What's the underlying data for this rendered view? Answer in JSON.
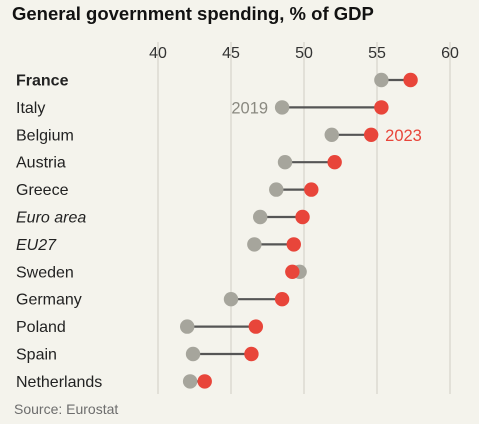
{
  "header": {
    "title": "General government spending, % of GDP"
  },
  "footer": {
    "source": "Source: Eurostat"
  },
  "colors": {
    "year_2019": "#a6a59c",
    "year_2023": "#e8453a",
    "connector": "#555555",
    "grid": "#cfcdc4",
    "background": "#f4f3ec"
  },
  "chart_data": {
    "type": "dot-plot",
    "title": "General government spending, % of GDP",
    "xlim": [
      40,
      60
    ],
    "x_ticks": [
      40,
      45,
      50,
      55,
      60
    ],
    "grid": true,
    "categories": [
      "France",
      "Italy",
      "Belgium",
      "Austria",
      "Greece",
      "Euro area",
      "EU27",
      "Sweden",
      "Germany",
      "Poland",
      "Spain",
      "Netherlands"
    ],
    "category_styles": [
      "bold",
      "normal",
      "normal",
      "normal",
      "normal",
      "italic",
      "italic",
      "normal",
      "normal",
      "normal",
      "normal",
      "normal"
    ],
    "series": [
      {
        "name": "2019",
        "values": [
          55.3,
          48.5,
          51.9,
          48.7,
          48.1,
          47.0,
          46.6,
          49.7,
          45.0,
          42.0,
          42.4,
          42.2
        ]
      },
      {
        "name": "2023",
        "values": [
          57.3,
          55.3,
          54.6,
          52.1,
          50.5,
          49.9,
          49.3,
          49.2,
          48.5,
          46.7,
          46.4,
          43.2
        ]
      }
    ],
    "annotations": [
      {
        "text": "2019",
        "series": "2019",
        "category": "Italy"
      },
      {
        "text": "2023",
        "series": "2023",
        "category": "Belgium"
      }
    ]
  }
}
